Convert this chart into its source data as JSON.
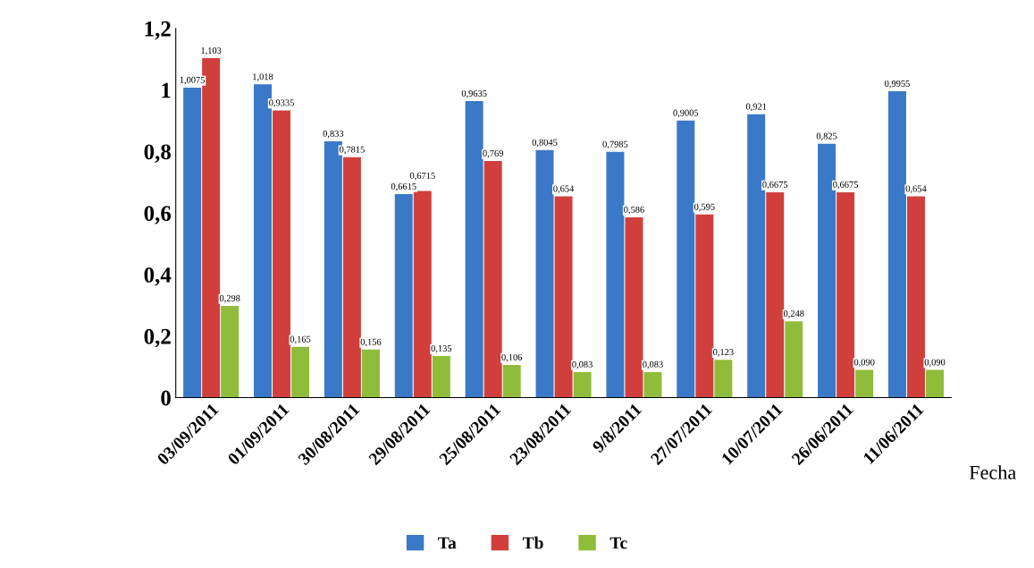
{
  "chart_data": {
    "type": "bar",
    "xlabel": "Fecha",
    "categories": [
      "03/09/2011",
      "01/09/2011",
      "30/08/2011",
      "29/08/2011",
      "25/08/2011",
      "23/08/2011",
      "9/8/2011",
      "27/07/2011",
      "10/07/2011",
      "26/06/2011",
      "11/06/2011"
    ],
    "series": [
      {
        "name": "Ta",
        "color": "#3a78c8",
        "values": [
          1.0075,
          1.018,
          0.833,
          0.6615,
          0.9635,
          0.8045,
          0.7985,
          0.9005,
          0.921,
          0.825,
          0.9955
        ],
        "value_labels": [
          "1,0075",
          "1,018",
          "0,833",
          "0,6615",
          "0,9635",
          "0,8045",
          "0,7985",
          "0,9005",
          "0,921",
          "0,825",
          "0,9955"
        ]
      },
      {
        "name": "Tb",
        "color": "#d13f3c",
        "values": [
          1.103,
          0.9335,
          0.7815,
          0.6715,
          0.769,
          0.654,
          0.586,
          0.595,
          0.6675,
          0.6675,
          0.654
        ],
        "value_labels": [
          "1,103",
          "0,9335",
          "0,7815",
          "0,6715",
          "0,769",
          "0,654",
          "0,586",
          "0,595",
          "0,6675",
          "0,6675",
          "0,654"
        ]
      },
      {
        "name": "Tc",
        "color": "#8fbc3a",
        "values": [
          0.298,
          0.165,
          0.156,
          0.135,
          0.106,
          0.083,
          0.083,
          0.123,
          0.248,
          0.09,
          0.09
        ],
        "value_labels": [
          "0,298",
          "0,165",
          "0,156",
          "0,135",
          "0,106",
          "0,083",
          "0,083",
          "0,123",
          "0,248",
          "0,090",
          "0,090"
        ]
      }
    ],
    "ylim": [
      0,
      1.2
    ],
    "yticks": [
      0,
      {
        "value": 0.2,
        "label": "0,2"
      },
      {
        "value": 0.4,
        "label": "0,4"
      },
      {
        "value": 0.6,
        "label": "0,6"
      },
      {
        "value": 0.8,
        "label": "0,8"
      },
      1,
      {
        "value": 1.2,
        "label": "1,2"
      }
    ],
    "grid": false,
    "legend": "bottom"
  }
}
